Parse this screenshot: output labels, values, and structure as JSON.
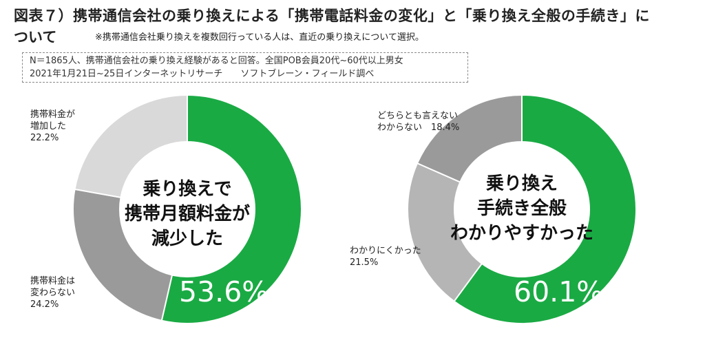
{
  "title": {
    "line1": "図表７）携帯通信会社の乗り換えによる「携帯電話料金の変化」と「乗り換え全般の手続き」に",
    "line2": "ついて",
    "note": "※携帯通信会社乗り換えを複数回行っている人は、直近の乗り換えについて選択。"
  },
  "survey": {
    "line1": "N＝1865人、携帯通信会社の乗り換え経験があると回答。全国POB会員20代~60代以上男女",
    "line2": "2021年1月21日~25日インターネットリサーチ　　ソフトブレーン・フィールド調べ"
  },
  "colors": {
    "green": "#1aaa44",
    "gray_dark": "#9a9a9a",
    "gray_mid": "#b5b5b5",
    "gray_light": "#d9d9d9"
  },
  "chart_data": [
    {
      "type": "pie",
      "style": "donut",
      "center_label": [
        "乗り換えで",
        "携帯月額料金が",
        "減少した"
      ],
      "highlight_label": "53.6%",
      "slices": [
        {
          "name": "減少した",
          "value": 53.6,
          "color": "#1aaa44"
        },
        {
          "name": "携帯料金は変わらない",
          "value": 24.2,
          "color": "#9a9a9a"
        },
        {
          "name": "携帯料金が増加した",
          "value": 22.2,
          "color": "#d9d9d9"
        }
      ],
      "labels": [
        {
          "lines": [
            "携帯料金は",
            "変わらない",
            "24.2%"
          ]
        },
        {
          "lines": [
            "携帯料金が",
            "増加した",
            "22.2%"
          ]
        }
      ]
    },
    {
      "type": "pie",
      "style": "donut",
      "center_label": [
        "乗り換え",
        "手続き全般",
        "わかりやすかった"
      ],
      "highlight_label": "60.1%",
      "slices": [
        {
          "name": "わかりやすかった",
          "value": 60.1,
          "color": "#1aaa44"
        },
        {
          "name": "わかりにくかった",
          "value": 21.5,
          "color": "#b5b5b5"
        },
        {
          "name": "どちらとも言えない わからない",
          "value": 18.4,
          "color": "#9a9a9a"
        }
      ],
      "labels": [
        {
          "lines": [
            "わかりにくかった",
            "21.5%"
          ]
        },
        {
          "lines": [
            "どちらとも言えない",
            "わからない　18.4%"
          ]
        }
      ]
    }
  ]
}
